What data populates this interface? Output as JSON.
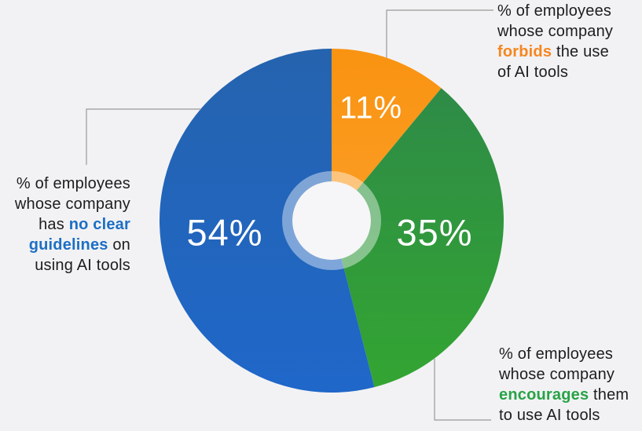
{
  "background_color": "#F2F2F4",
  "chart_data": {
    "type": "pie",
    "donut": true,
    "title": "",
    "start_angle_deg_from_top": 0,
    "direction": "clockwise",
    "legend_position": "callouts",
    "hole_fill": "#F6F6F8",
    "ring_color": "rgba(255,255,255,0.42)",
    "slices": [
      {
        "name": "forbids",
        "value": 11,
        "display": "11%",
        "label": "% of employees whose company forbids the use of AI tools",
        "color_start": "#F99311",
        "color_end": "#FB9D24"
      },
      {
        "name": "encourages",
        "value": 35,
        "display": "35%",
        "label": "% of employees whose company encourages them to use AI tools",
        "color_start": "#2E8B47",
        "color_end": "#33A532"
      },
      {
        "name": "no-clear-guidelines",
        "value": 54,
        "display": "54%",
        "label": "% of employees whose company has no clear guidelines on using AI tools",
        "color_start": "#2563AE",
        "color_end": "#1F67C9"
      }
    ]
  },
  "annotations": {
    "forbids": {
      "highlight_color": "#F6861F",
      "segments": [
        {
          "text": "% of employees\nwhose company\n",
          "highlight": false
        },
        {
          "text": "forbids",
          "highlight": true
        },
        {
          "text": " the use\nof AI tools",
          "highlight": false
        }
      ]
    },
    "guidelines": {
      "highlight_color": "#1D6FC4",
      "segments": [
        {
          "text": "% of employees\nwhose company\nhas ",
          "highlight": false
        },
        {
          "text": "no clear\nguidelines",
          "highlight": true
        },
        {
          "text": " on\nusing AI tools",
          "highlight": false
        }
      ]
    },
    "encourages": {
      "highlight_color": "#27A346",
      "segments": [
        {
          "text": "% of employees\nwhose company\n",
          "highlight": false
        },
        {
          "text": "encourages",
          "highlight": true
        },
        {
          "text": " them\nto use AI tools",
          "highlight": false
        }
      ]
    }
  },
  "text_color": "#1D1D1F",
  "connector_color": "#999999"
}
